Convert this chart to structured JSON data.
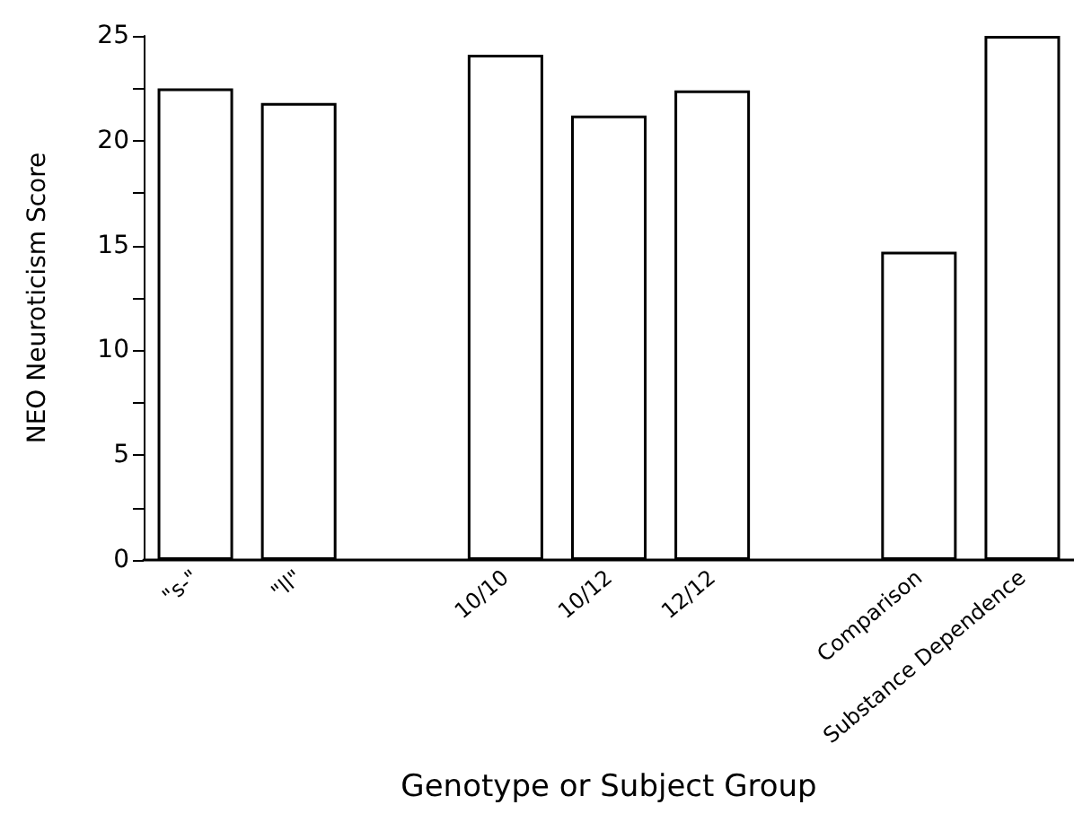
{
  "chart_data": {
    "type": "bar",
    "xlabel": "Genotype or Subject Group",
    "ylabel": "NEO Neuroticism Score",
    "categories": [
      "\"s-\"",
      "\"ll\"",
      null,
      "10/10",
      "10/12",
      "12/12",
      null,
      "Comparison",
      "Substance Dependence"
    ],
    "values": [
      22.5,
      21.8,
      null,
      24.1,
      21.2,
      22.4,
      null,
      14.7,
      25.0
    ],
    "color": "#ffffff",
    "ylim": [
      0,
      25
    ],
    "yticks": [
      0,
      {
        "value": 2.5,
        "label": null
      },
      5,
      {
        "value": 7.5,
        "label": null
      },
      10,
      {
        "value": 12.5,
        "label": null
      },
      15,
      {
        "value": 17.5,
        "label": null
      },
      20,
      {
        "value": 22.5,
        "label": null
      },
      25
    ],
    "grid": false
  }
}
